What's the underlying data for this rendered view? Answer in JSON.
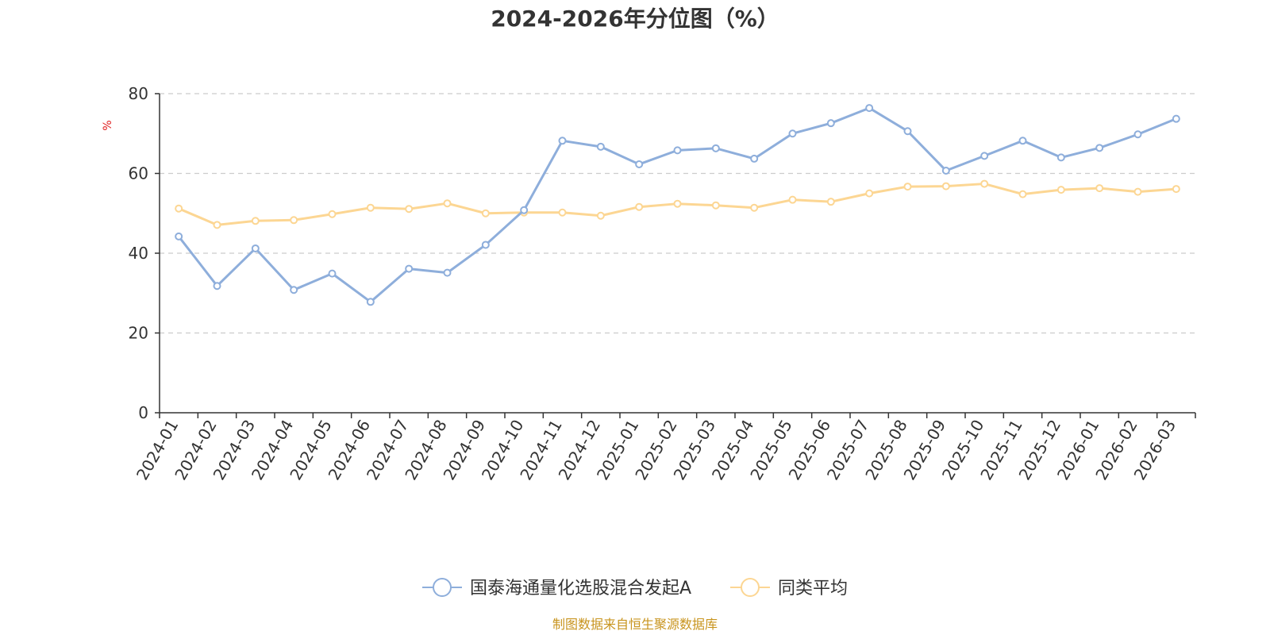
{
  "chart_data": {
    "type": "line",
    "title": "2024-2026年分位图（%）",
    "ylabel": "%",
    "ylim": [
      0,
      80
    ],
    "yticks": [
      0,
      20,
      40,
      60,
      80
    ],
    "grid": true,
    "legend_position": "bottom",
    "categories": [
      "2024-01",
      "2024-02",
      "2024-03",
      "2024-04",
      "2024-05",
      "2024-06",
      "2024-07",
      "2024-08",
      "2024-09",
      "2024-10",
      "2024-11",
      "2024-12",
      "2025-01",
      "2025-02",
      "2025-03",
      "2025-04",
      "2025-05",
      "2025-06",
      "2025-07",
      "2025-08",
      "2025-09",
      "2025-10",
      "2025-11",
      "2025-12",
      "2026-01",
      "2026-02",
      "2026-03"
    ],
    "series": [
      {
        "name": "国泰海通量化选股混合发起A",
        "color": "#8eaedb",
        "values": [
          44.2,
          31.8,
          41.2,
          30.8,
          34.9,
          27.8,
          36.1,
          35.1,
          42.1,
          50.8,
          68.2,
          66.7,
          62.3,
          65.8,
          66.3,
          63.7,
          70.0,
          72.6,
          76.4,
          70.6,
          60.7,
          64.4,
          68.2,
          64.0,
          66.4,
          69.8,
          73.7
        ]
      },
      {
        "name": "同类平均",
        "color": "#fcd693",
        "values": [
          51.2,
          47.1,
          48.1,
          48.3,
          49.8,
          51.4,
          51.1,
          52.5,
          50.0,
          50.2,
          50.2,
          49.4,
          51.6,
          52.4,
          52.0,
          51.4,
          53.4,
          52.9,
          55.0,
          56.7,
          56.8,
          57.4,
          54.8,
          55.9,
          56.3,
          55.4,
          56.1
        ]
      }
    ]
  },
  "source_text": "制图数据来自恒生聚源数据库"
}
